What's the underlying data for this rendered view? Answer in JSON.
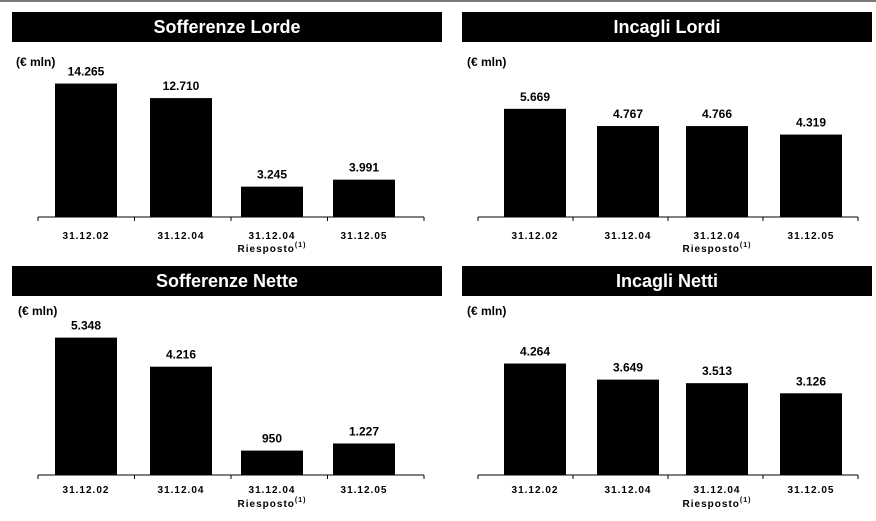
{
  "chart_data": [
    {
      "type": "bar",
      "title": "Sofferenze Lorde",
      "unit": "(€ mln)",
      "categories": [
        "31.12.02",
        "31.12.04",
        "31.12.04",
        "31.12.05"
      ],
      "sublabels": [
        "",
        "",
        "Riesposto",
        ""
      ],
      "superscripts": [
        "",
        "",
        "(1)",
        ""
      ],
      "values": [
        14265,
        12710,
        3245,
        3991
      ],
      "value_labels": [
        "14.265",
        "12.710",
        "3.245",
        "3.991"
      ],
      "ylim": [
        0,
        15500
      ]
    },
    {
      "type": "bar",
      "title": "Incagli Lordi",
      "unit": "(€ mln)",
      "categories": [
        "31.12.02",
        "31.12.04",
        "31.12.04",
        "31.12.05"
      ],
      "sublabels": [
        "",
        "",
        "Riesposto",
        ""
      ],
      "superscripts": [
        "",
        "",
        "(1)",
        ""
      ],
      "values": [
        5669,
        4767,
        4766,
        4319
      ],
      "value_labels": [
        "5.669",
        "4.767",
        "4.766",
        "4.319"
      ],
      "ylim": [
        0,
        7600
      ]
    },
    {
      "type": "bar",
      "title": "Sofferenze Nette",
      "unit": "(€ mln)",
      "categories": [
        "31.12.02",
        "31.12.04",
        "31.12.04",
        "31.12.05"
      ],
      "sublabels": [
        "",
        "",
        "Riesposto",
        ""
      ],
      "superscripts": [
        "",
        "",
        "(1)",
        ""
      ],
      "values": [
        5348,
        4216,
        950,
        1227
      ],
      "value_labels": [
        "5.348",
        "4.216",
        "950",
        "1.227"
      ],
      "ylim": [
        0,
        5800
      ]
    },
    {
      "type": "bar",
      "title": "Incagli Netti",
      "unit": "(€ mln)",
      "categories": [
        "31.12.02",
        "31.12.04",
        "31.12.04",
        "31.12.05"
      ],
      "sublabels": [
        "",
        "",
        "Riesposto",
        ""
      ],
      "superscripts": [
        "",
        "",
        "(1)",
        ""
      ],
      "values": [
        4264,
        3649,
        3513,
        3126
      ],
      "value_labels": [
        "4.264",
        "3.649",
        "3.513",
        "3.126"
      ],
      "ylim": [
        0,
        5700
      ]
    }
  ]
}
